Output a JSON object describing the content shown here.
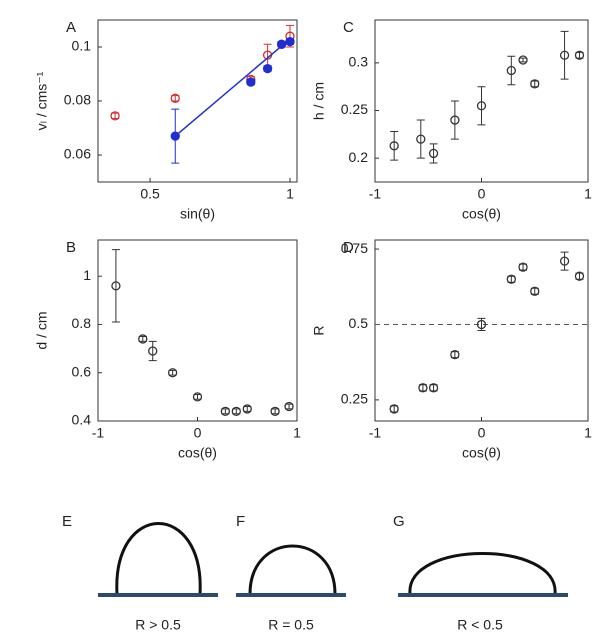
{
  "chart_data": [
    {
      "type": "scatter",
      "panel": "A",
      "xlabel": "sin(θ)",
      "ylabel": "vₗ / cms⁻¹",
      "xlim": [
        0.314,
        1.025
      ],
      "ylim": [
        0.05,
        0.11
      ],
      "xticks": [
        0.5,
        1
      ],
      "yticks": [
        0.06,
        0.08,
        0.1
      ],
      "series": [
        {
          "color": "#d03030",
          "filled": false,
          "x": [
            0.375,
            0.59,
            0.86,
            0.92,
            0.97,
            1.0
          ],
          "values": [
            0.0745,
            0.081,
            0.088,
            0.097,
            0.101,
            0.104
          ],
          "errors": [
            0.001,
            0.001,
            0.001,
            0.004,
            0.001,
            0.004
          ]
        },
        {
          "color": "#1f2fd0",
          "filled": true,
          "x": [
            0.59,
            0.86,
            0.92,
            0.97,
            1.0
          ],
          "values": [
            0.067,
            0.087,
            0.092,
            0.101,
            0.102
          ],
          "errors": [
            0.01,
            0.001,
            0.001,
            0.001,
            0.001
          ]
        },
        {
          "color": "#1f2fd0",
          "line": true,
          "x": [
            0.59,
            1.0
          ],
          "values": [
            0.067,
            0.103
          ]
        }
      ]
    },
    {
      "type": "scatter",
      "panel": "B",
      "xlabel": "cos(θ)",
      "ylabel": "d / cm",
      "xlim": [
        -1,
        1
      ],
      "ylim": [
        0.4,
        1.15
      ],
      "xticks": [
        -1,
        0,
        1
      ],
      "yticks": [
        0.4,
        0.6,
        0.8,
        1
      ],
      "series": [
        {
          "color": "#333333",
          "filled": false,
          "x": [
            -0.82,
            -0.55,
            -0.45,
            -0.25,
            0,
            0.28,
            0.39,
            0.5,
            0.78,
            0.92
          ],
          "values": [
            0.96,
            0.74,
            0.69,
            0.6,
            0.5,
            0.44,
            0.44,
            0.45,
            0.44,
            0.46
          ],
          "errors": [
            0.15,
            0.01,
            0.04,
            0.01,
            0.01,
            0.01,
            0.01,
            0.01,
            0.01,
            0.01
          ]
        }
      ]
    },
    {
      "type": "scatter",
      "panel": "C",
      "xlabel": "cos(θ)",
      "ylabel": "h / cm",
      "xlim": [
        -1,
        1
      ],
      "ylim": [
        0.175,
        0.345
      ],
      "xticks": [
        -1,
        0,
        1
      ],
      "yticks": [
        0.2,
        0.25,
        0.3
      ],
      "series": [
        {
          "color": "#333333",
          "filled": false,
          "x": [
            -0.82,
            -0.57,
            -0.45,
            -0.25,
            0,
            0.28,
            0.39,
            0.5,
            0.78,
            0.92
          ],
          "values": [
            0.213,
            0.22,
            0.205,
            0.24,
            0.255,
            0.292,
            0.303,
            0.278,
            0.308,
            0.308
          ],
          "errors": [
            0.015,
            0.02,
            0.01,
            0.02,
            0.02,
            0.015,
            0.002,
            0.003,
            0.025,
            0.003
          ]
        }
      ]
    },
    {
      "type": "scatter",
      "panel": "D",
      "xlabel": "cos(θ)",
      "ylabel": "R",
      "xlim": [
        -1,
        1
      ],
      "ylim": [
        0.18,
        0.78
      ],
      "xticks": [
        -1,
        0,
        1
      ],
      "yticks": [
        0.25,
        0.5,
        0.75
      ],
      "hline": 0.5,
      "series": [
        {
          "color": "#333333",
          "filled": false,
          "x": [
            -0.82,
            -0.55,
            -0.45,
            -0.25,
            0,
            0.28,
            0.39,
            0.5,
            0.78,
            0.92
          ],
          "values": [
            0.22,
            0.29,
            0.29,
            0.4,
            0.5,
            0.65,
            0.69,
            0.61,
            0.71,
            0.66
          ],
          "errors": [
            0.01,
            0.01,
            0.01,
            0.01,
            0.02,
            0.01,
            0.01,
            0.01,
            0.03,
            0.01
          ]
        }
      ]
    }
  ],
  "shapes": [
    {
      "panel": "E",
      "label": "R > 0.5"
    },
    {
      "panel": "F",
      "label": "R = 0.5"
    },
    {
      "panel": "G",
      "label": "R < 0.5"
    }
  ]
}
